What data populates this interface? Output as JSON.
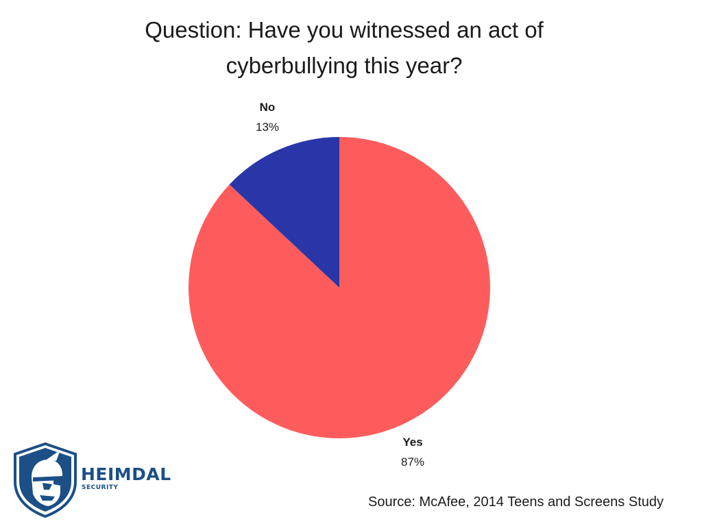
{
  "chart_data": {
    "type": "pie",
    "title_lines": [
      "Question: Have you witnessed an act of",
      "cyberbullying this year?"
    ],
    "slices": [
      {
        "label": "Yes",
        "value": 87,
        "value_text": "87%",
        "color": "#fe5c5c"
      },
      {
        "label": "No",
        "value": 13,
        "value_text": "13%",
        "color": "#2a36a8"
      }
    ],
    "legend": false,
    "label_style": "name above percentage, outside each slice"
  },
  "logo": {
    "brand": "HEIMDAL",
    "sub": "SECURITY",
    "icon": "helmeted-warrior-shield-icon",
    "color": "#1b4f86"
  },
  "source": "Source: McAfee, 2014 Teens and Screens Study"
}
